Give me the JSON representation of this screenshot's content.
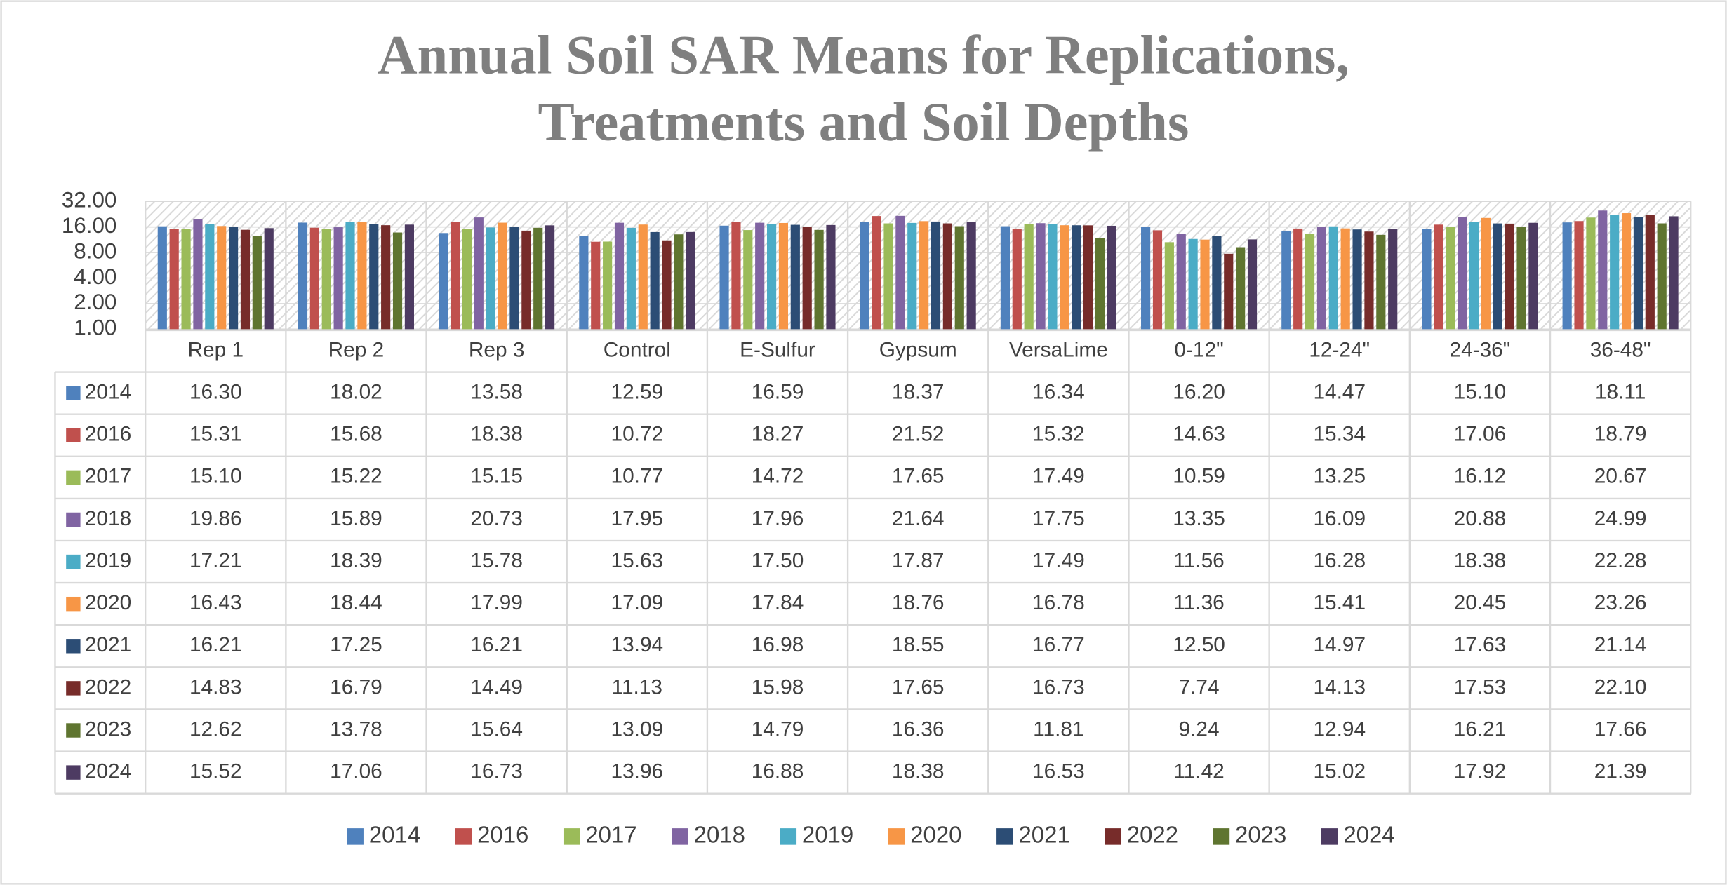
{
  "chart_data": {
    "type": "bar",
    "title": [
      "Annual Soil SAR Means for Replications,",
      "Treatments and Soil Depths"
    ],
    "categories": [
      "Rep 1",
      "Rep 2",
      "Rep 3",
      "Control",
      "E-Sulfur",
      "Gypsum",
      "VersaLime",
      "0-12\"",
      "12-24\"",
      "24-36\"",
      "36-48\""
    ],
    "log_scale": true,
    "log_base": 2,
    "grid": true,
    "ylim": [
      1,
      32
    ],
    "yticks": [
      {
        "value": 1,
        "label": "1.00"
      },
      {
        "value": 2,
        "label": "2.00"
      },
      {
        "value": 4,
        "label": "4.00"
      },
      {
        "value": 8,
        "label": "8.00"
      },
      {
        "value": 16,
        "label": "16.00"
      },
      {
        "value": 32,
        "label": "32.00"
      }
    ],
    "legend": "bottom",
    "series": [
      {
        "name": "2014",
        "color": "#4f81bd",
        "values": [
          16.3,
          18.02,
          13.58,
          12.59,
          16.59,
          18.37,
          16.34,
          16.2,
          14.47,
          15.1,
          18.11
        ],
        "value_labels": [
          "16.30",
          "18.02",
          "13.58",
          "12.59",
          "16.59",
          "18.37",
          "16.34",
          "16.20",
          "14.47",
          "15.10",
          "18.11"
        ]
      },
      {
        "name": "2016",
        "color": "#c0504d",
        "values": [
          15.31,
          15.68,
          18.38,
          10.72,
          18.27,
          21.52,
          15.32,
          14.63,
          15.34,
          17.06,
          18.79
        ],
        "value_labels": [
          "15.31",
          "15.68",
          "18.38",
          "10.72",
          "18.27",
          "21.52",
          "15.32",
          "14.63",
          "15.34",
          "17.06",
          "18.79"
        ]
      },
      {
        "name": "2017",
        "color": "#9bbb59",
        "values": [
          15.1,
          15.22,
          15.15,
          10.77,
          14.72,
          17.65,
          17.49,
          10.59,
          13.25,
          16.12,
          20.67
        ],
        "value_labels": [
          "15.10",
          "15.22",
          "15.15",
          "10.77",
          "14.72",
          "17.65",
          "17.49",
          "10.59",
          "13.25",
          "16.12",
          "20.67"
        ]
      },
      {
        "name": "2018",
        "color": "#8064a2",
        "values": [
          19.86,
          15.89,
          20.73,
          17.95,
          17.96,
          21.64,
          17.75,
          13.35,
          16.09,
          20.88,
          24.99
        ],
        "value_labels": [
          "19.86",
          "15.89",
          "20.73",
          "17.95",
          "17.96",
          "21.64",
          "17.75",
          "13.35",
          "16.09",
          "20.88",
          "24.99"
        ]
      },
      {
        "name": "2019",
        "color": "#4bacc6",
        "values": [
          17.21,
          18.39,
          15.78,
          15.63,
          17.5,
          17.87,
          17.49,
          11.56,
          16.28,
          18.38,
          22.28
        ],
        "value_labels": [
          "17.21",
          "18.39",
          "15.78",
          "15.63",
          "17.50",
          "17.87",
          "17.49",
          "11.56",
          "16.28",
          "18.38",
          "22.28"
        ]
      },
      {
        "name": "2020",
        "color": "#f79646",
        "values": [
          16.43,
          18.44,
          17.99,
          17.09,
          17.84,
          18.76,
          16.78,
          11.36,
          15.41,
          20.45,
          23.26
        ],
        "value_labels": [
          "16.43",
          "18.44",
          "17.99",
          "17.09",
          "17.84",
          "18.76",
          "16.78",
          "11.36",
          "15.41",
          "20.45",
          "23.26"
        ]
      },
      {
        "name": "2021",
        "color": "#2c4d75",
        "values": [
          16.21,
          17.25,
          16.21,
          13.94,
          16.98,
          18.55,
          16.77,
          12.5,
          14.97,
          17.63,
          21.14
        ],
        "value_labels": [
          "16.21",
          "17.25",
          "16.21",
          "13.94",
          "16.98",
          "18.55",
          "16.77",
          "12.50",
          "14.97",
          "17.63",
          "21.14"
        ]
      },
      {
        "name": "2022",
        "color": "#772c2a",
        "values": [
          14.83,
          16.79,
          14.49,
          11.13,
          15.98,
          17.65,
          16.73,
          7.74,
          14.13,
          17.53,
          22.1
        ],
        "value_labels": [
          "14.83",
          "16.79",
          "14.49",
          "11.13",
          "15.98",
          "17.65",
          "16.73",
          "7.74",
          "14.13",
          "17.53",
          "22.10"
        ]
      },
      {
        "name": "2023",
        "color": "#5f7530",
        "values": [
          12.62,
          13.78,
          15.64,
          13.09,
          14.79,
          16.36,
          11.81,
          9.24,
          12.94,
          16.21,
          17.66
        ],
        "value_labels": [
          "12.62",
          "13.78",
          "15.64",
          "13.09",
          "14.79",
          "16.36",
          "11.81",
          "9.24",
          "12.94",
          "16.21",
          "17.66"
        ]
      },
      {
        "name": "2024",
        "color": "#4d3b62",
        "values": [
          15.52,
          17.06,
          16.73,
          13.96,
          16.88,
          18.38,
          16.53,
          11.42,
          15.02,
          17.92,
          21.39
        ],
        "value_labels": [
          "15.52",
          "17.06",
          "16.73",
          "13.96",
          "16.88",
          "18.38",
          "16.53",
          "11.42",
          "15.02",
          "17.92",
          "21.39"
        ]
      }
    ]
  }
}
